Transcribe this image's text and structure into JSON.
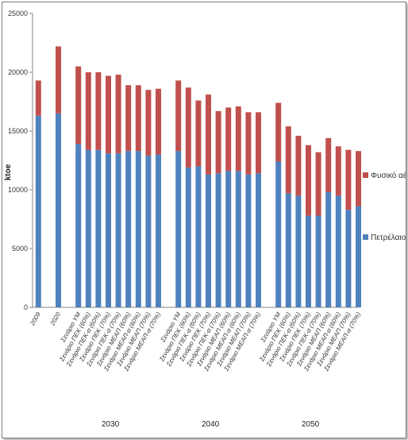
{
  "chart_data": {
    "type": "bar",
    "stacked": true,
    "ylabel": "ktoe",
    "ylim": [
      0,
      25000
    ],
    "yticks": [
      0,
      5000,
      10000,
      15000,
      20000,
      25000
    ],
    "grid": false,
    "legend_position": "right",
    "categories": [
      "2009",
      "2020",
      "Σενάριο ΥΜ",
      "Σενάριο ΠΕΚ (60%)",
      "Σενάριο ΠΕΚ-α (60%)",
      "Σενάριο ΠΕΚ (70%)",
      "Σενάριο ΠΕΚ-α (70%)",
      "Σενάριο ΜΕΑΠ (60%)",
      "Σενάριο ΜΕΑΠ-α (60%)",
      "Σενάριο ΜΕΑΠ (70%)",
      "Σενάριο ΜΕΑΠ-α (70%)",
      "Σενάριο ΥΜ",
      "Σενάριο ΠΕΚ (60%)",
      "Σενάριο ΠΕΚ-α (60%)",
      "Σενάριο ΠΕΚ (70%)",
      "Σενάριο ΠΕΚ-α (70%)",
      "Σενάριο ΜΕΑΠ (60%)",
      "Σενάριο ΜΕΑΠ-α (60%)",
      "Σενάριο ΜΕΑΠ (70%)",
      "Σενάριο ΜΕΑΠ-α (70%)",
      "Σενάριο ΥΜ",
      "Σενάριο ΠΕΚ (60%)",
      "Σενάριο ΠΕΚ-α (60%)",
      "Σενάριο ΠΕΚ (70%)",
      "Σενάριο ΠΕΚ-α (70%)",
      "Σενάριο ΜΕΑΠ (60%)",
      "Σενάριο ΜΕΑΠ-α (60%)",
      "Σενάριο ΜΕΑΠ (70%)",
      "Σενάριο ΜΕΑΠ-α (70%)"
    ],
    "groups": [
      {
        "label": "2030",
        "start": 2,
        "end": 10
      },
      {
        "label": "2040",
        "start": 11,
        "end": 19
      },
      {
        "label": "2050",
        "start": 20,
        "end": 28
      }
    ],
    "series": [
      {
        "name": "Πετρέλαιο",
        "color": "#4f81bd",
        "values": [
          16300,
          16500,
          13900,
          13400,
          13400,
          13100,
          13100,
          13300,
          13300,
          12900,
          13000,
          13300,
          11900,
          12000,
          11300,
          11400,
          11600,
          11600,
          11300,
          11400,
          12400,
          9700,
          9500,
          7800,
          7800,
          9800,
          9500,
          8300,
          8600
        ]
      },
      {
        "name": "Φυσικό αέριο",
        "color": "#c0504d",
        "values": [
          3000,
          5700,
          6600,
          6600,
          6600,
          6600,
          6700,
          5600,
          5600,
          5600,
          5600,
          6000,
          6800,
          5600,
          6800,
          5300,
          5400,
          5500,
          5300,
          5200,
          5000,
          5700,
          5100,
          6000,
          5400,
          4600,
          4200,
          5100,
          4700
        ]
      }
    ]
  }
}
